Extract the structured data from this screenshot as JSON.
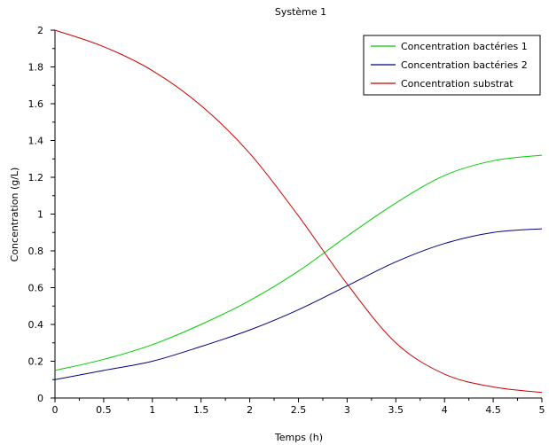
{
  "chart_data": {
    "type": "line",
    "title": "Système 1",
    "xlabel": "Temps (h)",
    "ylabel": "Concentration (g/L)",
    "xlim": [
      0,
      5
    ],
    "ylim": [
      0,
      2
    ],
    "grid": false,
    "legend_position": "top-right",
    "x_ticks": [
      "0",
      "0.5",
      "1",
      "1.5",
      "2",
      "2.5",
      "3",
      "3.5",
      "4",
      "4.5",
      "5"
    ],
    "y_ticks": [
      "0",
      "0.2",
      "0.4",
      "0.6",
      "0.8",
      "1",
      "1.2",
      "1.4",
      "1.6",
      "1.8",
      "2"
    ],
    "x": [
      0,
      0.5,
      1,
      1.5,
      2,
      2.5,
      3,
      3.5,
      4,
      4.5,
      5
    ],
    "series": [
      {
        "name": "Concentration bactéries 1",
        "color": "#00cc00",
        "values": [
          0.15,
          0.21,
          0.29,
          0.4,
          0.53,
          0.69,
          0.88,
          1.06,
          1.21,
          1.29,
          1.32
        ]
      },
      {
        "name": "Concentration bactéries 2",
        "color": "#000080",
        "values": [
          0.1,
          0.15,
          0.2,
          0.28,
          0.37,
          0.48,
          0.61,
          0.74,
          0.84,
          0.9,
          0.92
        ]
      },
      {
        "name": "Concentration substrat",
        "color": "#cc0000",
        "values": [
          2.0,
          1.91,
          1.78,
          1.59,
          1.33,
          0.99,
          0.62,
          0.3,
          0.13,
          0.06,
          0.03
        ]
      }
    ]
  }
}
